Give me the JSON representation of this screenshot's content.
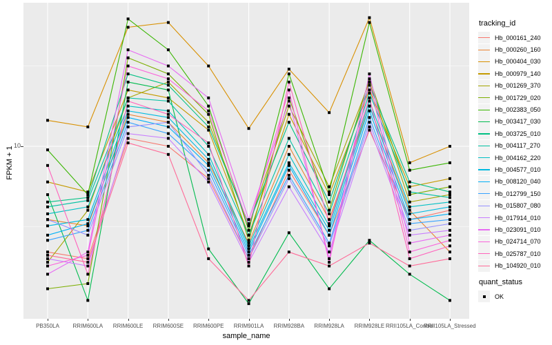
{
  "axes": {
    "x_title": "sample_name",
    "y_title": "FPKM + 1",
    "y_tick_labels": [
      "10"
    ]
  },
  "legend": {
    "tracking_title": "tracking_id",
    "quant_title": "quant_status",
    "quant_items": [
      {
        "label": "OK",
        "key": "black-filled-square"
      }
    ]
  },
  "colors": {
    "panel_background": "#EBEBEB",
    "grid": "#FFFFFF",
    "legend_key_background": "#F2F2F2",
    "point": "#000000",
    "tick_text": "#4D4D4D"
  },
  "chart_data": {
    "type": "line",
    "title": "",
    "xlabel": "sample_name",
    "ylabel": "FPKM + 1",
    "y_scale": "log10",
    "y_tick_values": [
      10
    ],
    "ylim": [
      0.85,
      77
    ],
    "grid": "white major/minor on grey panel",
    "legend_position": "right",
    "point_shape": "filled-black-square (quant_status OK)",
    "x_categories": [
      "PB350LA",
      "RRIM600LA",
      "RRIM600LE",
      "RRIM600SE",
      "RRIM600PE",
      "RRIM901LA",
      "RRIM928BA",
      "RRIM928LA",
      "RRIM928LE",
      "RRII105LA_Control",
      "RRII105LA_Stressed"
    ],
    "series": [
      {
        "name": "Hb_000161_240",
        "color": "#F8766D",
        "values": [
          2.2,
          2.0,
          11.2,
          10.0,
          6.3,
          2.0,
          7.1,
          2.8,
          12.6,
          3.5,
          4.0
        ]
      },
      {
        "name": "Hb_000260_160",
        "color": "#EA8331",
        "values": [
          3.5,
          3.2,
          15.8,
          14.1,
          7.9,
          2.5,
          10.0,
          3.5,
          17.8,
          4.0,
          2.2
        ]
      },
      {
        "name": "Hb_000404_030",
        "color": "#D89000",
        "values": [
          14.5,
          13.2,
          55.0,
          58.9,
          31.6,
          12.9,
          30.2,
          16.2,
          63.1,
          7.9,
          10.0
        ]
      },
      {
        "name": "Hb_000979_140",
        "color": "#C49A00",
        "values": [
          6.0,
          5.2,
          22.4,
          20.0,
          12.6,
          2.8,
          15.8,
          5.0,
          22.4,
          5.6,
          6.3
        ]
      },
      {
        "name": "Hb_001269_370",
        "color": "#A3A500",
        "values": [
          1.9,
          4.0,
          20.0,
          25.1,
          14.1,
          3.2,
          17.8,
          5.6,
          25.1,
          4.5,
          5.0
        ]
      },
      {
        "name": "Hb_001729_020",
        "color": "#7CAE00",
        "values": [
          1.3,
          1.4,
          35.5,
          28.2,
          15.8,
          2.6,
          20.0,
          4.0,
          26.3,
          5.0,
          5.6
        ]
      },
      {
        "name": "Hb_002383_050",
        "color": "#39B600",
        "values": [
          9.5,
          5.0,
          62.0,
          39.8,
          17.8,
          3.0,
          28.2,
          5.2,
          58.9,
          7.1,
          7.9
        ]
      },
      {
        "name": "Hb_003417_030",
        "color": "#00BB4E",
        "values": [
          5.0,
          1.1,
          25.1,
          22.4,
          2.3,
          1.05,
          2.9,
          1.3,
          2.6,
          1.6,
          1.1
        ]
      },
      {
        "name": "Hb_003725_010",
        "color": "#00C083",
        "values": [
          4.5,
          4.8,
          28.2,
          24.0,
          13.2,
          3.3,
          14.1,
          4.5,
          24.0,
          6.0,
          5.2
        ]
      },
      {
        "name": "Hb_004117_270",
        "color": "#00C1A2",
        "values": [
          4.2,
          4.6,
          20.0,
          19.1,
          10.0,
          2.8,
          11.2,
          3.8,
          21.4,
          5.2,
          4.8
        ]
      },
      {
        "name": "Hb_004162_220",
        "color": "#00BFC4",
        "values": [
          3.8,
          4.2,
          17.8,
          16.6,
          8.9,
          2.4,
          8.9,
          3.2,
          19.1,
          4.2,
          4.5
        ]
      },
      {
        "name": "Hb_004577_010",
        "color": "#00BAE0",
        "values": [
          3.2,
          3.5,
          16.6,
          15.1,
          8.3,
          2.3,
          7.9,
          3.0,
          17.8,
          3.8,
          4.2
        ]
      },
      {
        "name": "Hb_008120_040",
        "color": "#00B0F6",
        "values": [
          2.8,
          3.3,
          15.1,
          13.2,
          7.6,
          2.2,
          7.6,
          2.8,
          16.6,
          3.5,
          3.8
        ]
      },
      {
        "name": "Hb_012799_150",
        "color": "#35A2FF",
        "values": [
          2.6,
          3.0,
          14.1,
          12.0,
          7.1,
          2.1,
          6.6,
          2.5,
          15.1,
          3.3,
          3.5
        ]
      },
      {
        "name": "Hb_015807_080",
        "color": "#9590FF",
        "values": [
          3.5,
          2.8,
          13.2,
          14.1,
          6.6,
          2.0,
          6.3,
          2.4,
          14.1,
          3.0,
          3.3
        ]
      },
      {
        "name": "Hb_017914_010",
        "color": "#C77CFF",
        "values": [
          2.0,
          1.8,
          12.0,
          11.2,
          6.0,
          1.9,
          5.6,
          2.2,
          13.2,
          2.8,
          3.0
        ]
      },
      {
        "name": "Hb_023091_010",
        "color": "#E76BF3",
        "values": [
          1.6,
          2.2,
          39.8,
          31.6,
          20.0,
          3.5,
          19.1,
          2.0,
          28.2,
          2.5,
          2.8
        ]
      },
      {
        "name": "Hb_024714_070",
        "color": "#FA62DB",
        "values": [
          1.8,
          2.1,
          31.6,
          26.3,
          16.6,
          3.2,
          22.4,
          1.9,
          25.1,
          2.2,
          2.6
        ]
      },
      {
        "name": "Hb_025787_010",
        "color": "#FF62BC",
        "values": [
          7.6,
          1.6,
          19.1,
          15.8,
          10.5,
          1.8,
          25.1,
          3.3,
          20.0,
          2.0,
          2.4
        ]
      },
      {
        "name": "Hb_104920_010",
        "color": "#FF6A98",
        "values": [
          2.1,
          1.9,
          10.5,
          8.9,
          2.0,
          1.1,
          2.2,
          1.8,
          2.5,
          1.8,
          2.0
        ]
      }
    ]
  }
}
